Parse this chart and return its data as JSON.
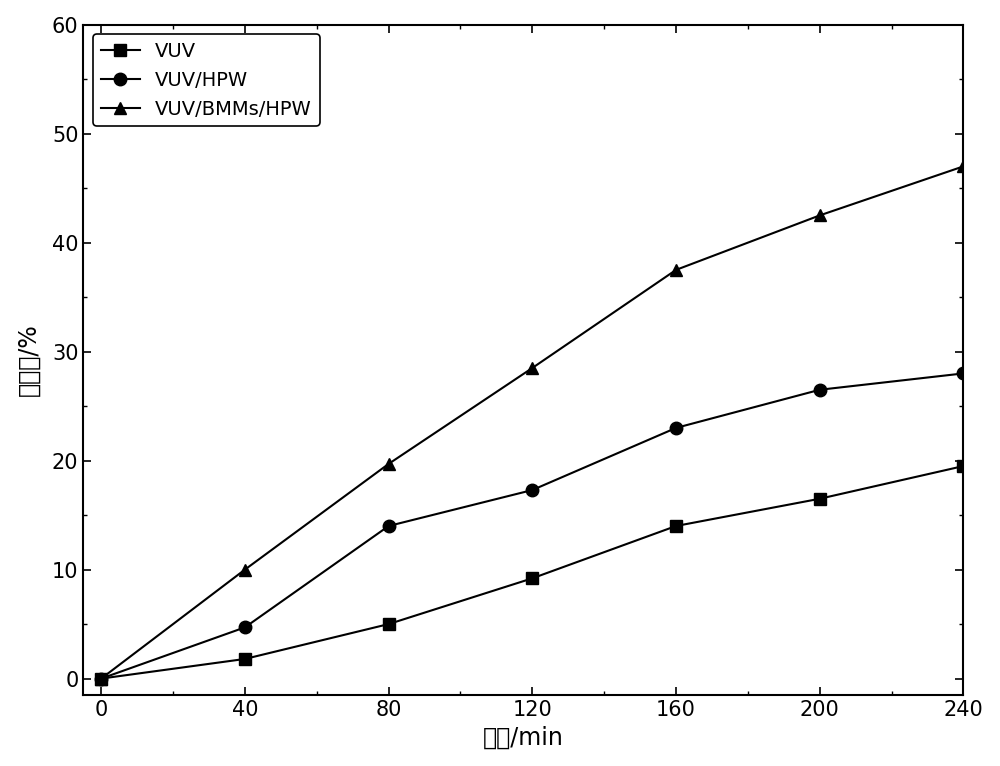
{
  "x": [
    0,
    40,
    80,
    120,
    160,
    200,
    240
  ],
  "vuv": [
    0,
    1.8,
    5.0,
    9.2,
    14.0,
    16.5,
    19.5
  ],
  "vuv_hpw": [
    0,
    4.7,
    14.0,
    17.3,
    23.0,
    26.5,
    28.0
  ],
  "vuv_bmms_hpw": [
    0,
    10.0,
    19.7,
    28.5,
    37.5,
    42.5,
    47.0
  ],
  "xlabel": "时间/min",
  "ylabel": "脱氟率/%",
  "legend": [
    "VUV",
    "VUV/HPW",
    "VUV/BMMs/HPW"
  ],
  "xlim": [
    -5,
    240
  ],
  "ylim": [
    -1.5,
    60
  ],
  "xticks": [
    0,
    40,
    80,
    120,
    160,
    200,
    240
  ],
  "yticks": [
    0,
    10,
    20,
    30,
    40,
    50,
    60
  ],
  "line_color": "#000000",
  "bg_color": "#ffffff",
  "marker_square": "s",
  "marker_circle": "o",
  "marker_triangle": "^",
  "markersize": 9,
  "linewidth": 1.5,
  "fontsize_label": 17,
  "fontsize_tick": 15,
  "fontsize_legend": 14
}
